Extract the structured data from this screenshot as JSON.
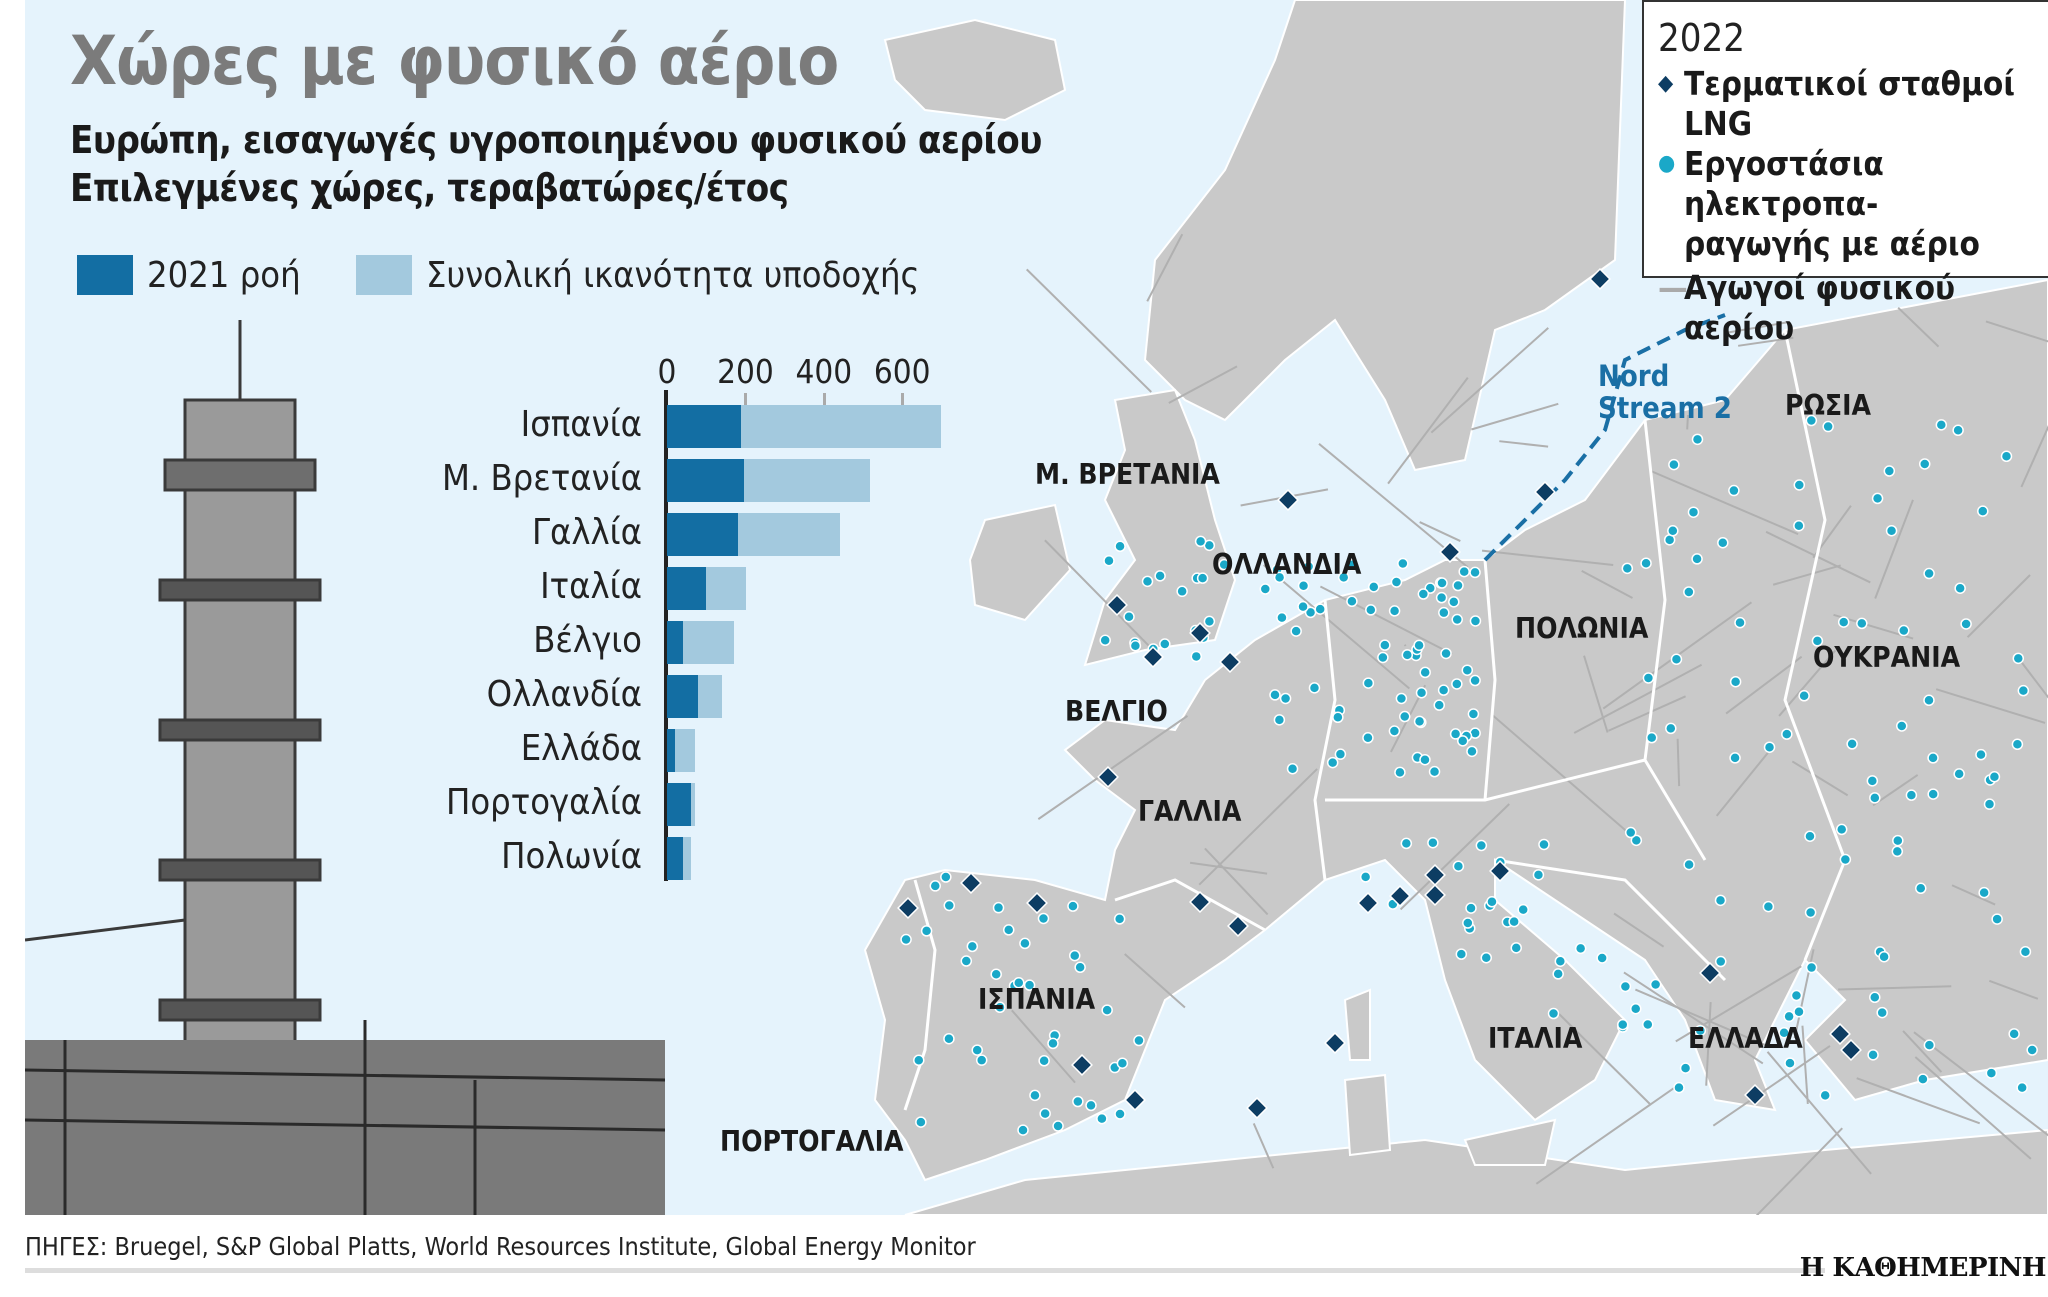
{
  "header": {
    "title": "Χώρες με φυσικό αέριο",
    "subtitle1": "Ευρώπη, εισαγωγές υγροποιημένου φυσικού αερίου",
    "subtitle2": "Επιλεγμένες χώρες, τεραβατώρες/έτος"
  },
  "chart_data": {
    "type": "bar",
    "orientation": "horizontal",
    "categories": [
      "Ισπανία",
      "Μ. Βρετανία",
      "Γαλλία",
      "Ιταλία",
      "Βέλγιο",
      "Ολλανδία",
      "Ελλάδα",
      "Πορτογαλία",
      "Πολωνία"
    ],
    "series": [
      {
        "name": "2021 ροή",
        "color": "#136ea3",
        "values": [
          190,
          196,
          180,
          100,
          41,
          78,
          20,
          60,
          41
        ]
      },
      {
        "name": "Συνολική ικανότητα υποδοχής",
        "color": "#a3c9de",
        "values": [
          700,
          517,
          441,
          201,
          170,
          140,
          71,
          71,
          60
        ]
      }
    ],
    "xticks": [
      "0",
      "200",
      "400",
      "600"
    ],
    "xlim": [
      0,
      700
    ],
    "legend": "top",
    "grid": false
  },
  "map": {
    "labels": [
      "Μ. ΒΡΕΤΑΝΙΑ",
      "ΟΛΛΑΝΔΙΑ",
      "ΒΕΛΓΙΟ",
      "ΓΑΛΛΙΑ",
      "ΙΣΠΑΝΙΑ",
      "ΠΟΡΤΟΓΑΛΙΑ",
      "ΙΤΑΛΙΑ",
      "ΕΛΛΑΔΑ",
      "ΠΟΛΩΝΙΑ",
      "ΟΥΚΡΑΝΙΑ",
      "ΡΩΣΙΑ"
    ],
    "nord_stream_line1": "Nord",
    "nord_stream_line2": "Stream 2",
    "colors": {
      "land": "#c9c9c9",
      "sea": "#e5f3fc",
      "lng": "#0d3d63",
      "plant": "#1aa8c8",
      "pipeline": "#b8b8b8",
      "border": "#ffffff",
      "nord_stream": "#1a6fa5"
    }
  },
  "legend_box": {
    "year": "2022",
    "items": [
      {
        "icon": "diamond-icon",
        "label": "Τερματικοί σταθμοί LNG"
      },
      {
        "icon": "dot-icon",
        "label": "Εργοστάσια ηλεκτροπα-",
        "label2": "ραγωγής με αέριο"
      },
      {
        "icon": "line-icon",
        "label": "Αγωγοί φυσικού αερίου"
      }
    ]
  },
  "footer": {
    "sources": "ΠΗΓΕΣ: Bruegel, S&P Global Platts, World Resources Institute, Global Energy Monitor",
    "logo": "Η ΚΑΘΗΜΕΡΙΝΗ"
  }
}
